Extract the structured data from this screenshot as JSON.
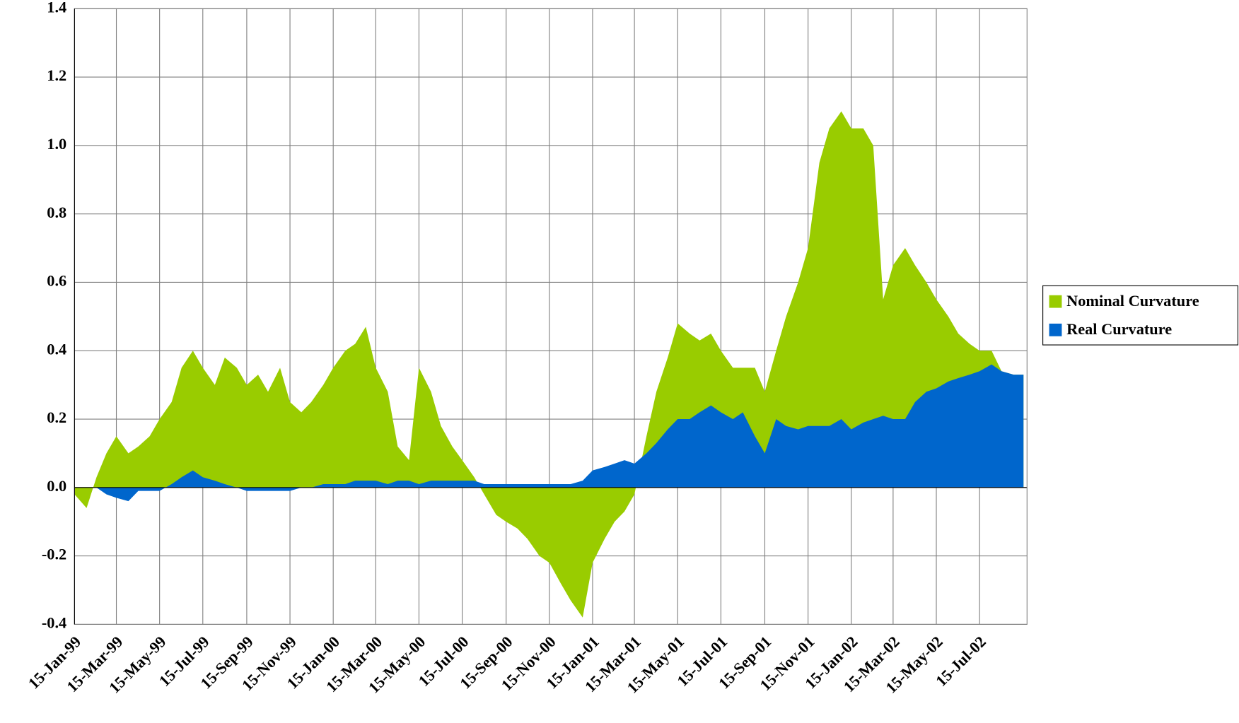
{
  "chart_data": {
    "type": "area",
    "x": [
      "1999-01-15",
      "1999-02-01",
      "1999-02-15",
      "1999-03-01",
      "1999-03-15",
      "1999-04-01",
      "1999-04-15",
      "1999-05-01",
      "1999-05-15",
      "1999-06-01",
      "1999-06-15",
      "1999-07-01",
      "1999-07-15",
      "1999-08-01",
      "1999-08-15",
      "1999-09-01",
      "1999-09-15",
      "1999-10-01",
      "1999-10-15",
      "1999-11-01",
      "1999-11-15",
      "1999-12-01",
      "1999-12-15",
      "2000-01-01",
      "2000-01-15",
      "2000-02-01",
      "2000-02-15",
      "2000-03-01",
      "2000-03-15",
      "2000-04-01",
      "2000-04-15",
      "2000-05-01",
      "2000-05-15",
      "2000-06-01",
      "2000-06-15",
      "2000-07-01",
      "2000-07-15",
      "2000-08-01",
      "2000-08-15",
      "2000-09-01",
      "2000-09-15",
      "2000-10-01",
      "2000-10-15",
      "2000-11-01",
      "2000-11-15",
      "2000-12-01",
      "2000-12-15",
      "2001-01-01",
      "2001-01-15",
      "2001-02-01",
      "2001-02-15",
      "2001-03-01",
      "2001-03-15",
      "2001-04-01",
      "2001-04-15",
      "2001-05-01",
      "2001-05-15",
      "2001-06-01",
      "2001-06-15",
      "2001-07-01",
      "2001-07-15",
      "2001-08-01",
      "2001-08-15",
      "2001-09-01",
      "2001-09-15",
      "2001-10-01",
      "2001-10-15",
      "2001-11-01",
      "2001-11-15",
      "2001-12-01",
      "2001-12-15",
      "2002-01-01",
      "2002-01-15",
      "2002-02-01",
      "2002-02-15",
      "2002-03-01",
      "2002-03-15",
      "2002-04-01",
      "2002-04-15",
      "2002-05-01",
      "2002-05-15",
      "2002-06-01",
      "2002-06-15",
      "2002-07-01",
      "2002-07-15",
      "2002-08-01",
      "2002-08-15",
      "2002-09-01",
      "2002-09-15"
    ],
    "series": [
      {
        "name": "Nominal Curvature",
        "color": "#99cc00",
        "values": [
          -0.02,
          -0.06,
          0.03,
          0.1,
          0.15,
          0.1,
          0.12,
          0.15,
          0.2,
          0.25,
          0.35,
          0.4,
          0.35,
          0.3,
          0.38,
          0.35,
          0.3,
          0.33,
          0.28,
          0.35,
          0.25,
          0.22,
          0.25,
          0.3,
          0.35,
          0.4,
          0.42,
          0.47,
          0.35,
          0.28,
          0.12,
          0.08,
          0.35,
          0.28,
          0.18,
          0.12,
          0.08,
          0.03,
          -0.02,
          -0.08,
          -0.1,
          -0.12,
          -0.15,
          -0.2,
          -0.22,
          -0.28,
          -0.33,
          -0.38,
          -0.22,
          -0.15,
          -0.1,
          -0.07,
          -0.02,
          0.15,
          0.28,
          0.38,
          0.48,
          0.45,
          0.43,
          0.45,
          0.4,
          0.35,
          0.35,
          0.35,
          0.28,
          0.4,
          0.5,
          0.6,
          0.7,
          0.95,
          1.05,
          1.1,
          1.05,
          1.05,
          1.0,
          0.55,
          0.65,
          0.7,
          0.65,
          0.6,
          0.55,
          0.5,
          0.45,
          0.42,
          0.4,
          0.4,
          0.34,
          0.33,
          0.33
        ]
      },
      {
        "name": "Real Curvature",
        "color": "#0066cc",
        "values": [
          0,
          0,
          0,
          -0.02,
          -0.03,
          -0.04,
          -0.01,
          -0.01,
          -0.01,
          0.01,
          0.03,
          0.05,
          0.03,
          0.02,
          0.01,
          0,
          -0.01,
          -0.01,
          -0.01,
          -0.01,
          -0.01,
          0,
          0,
          0.01,
          0.01,
          0.01,
          0.02,
          0.02,
          0.02,
          0.01,
          0.02,
          0.02,
          0.01,
          0.02,
          0.02,
          0.02,
          0.02,
          0.02,
          0.01,
          0.01,
          0.01,
          0.01,
          0.01,
          0.01,
          0.01,
          0.01,
          0.01,
          0.02,
          0.05,
          0.06,
          0.07,
          0.08,
          0.07,
          0.1,
          0.13,
          0.17,
          0.2,
          0.2,
          0.22,
          0.24,
          0.22,
          0.2,
          0.22,
          0.15,
          0.1,
          0.2,
          0.18,
          0.17,
          0.18,
          0.18,
          0.18,
          0.2,
          0.17,
          0.19,
          0.2,
          0.21,
          0.2,
          0.2,
          0.25,
          0.28,
          0.29,
          0.31,
          0.32,
          0.33,
          0.34,
          0.36,
          0.34,
          0.33,
          0.33
        ]
      }
    ],
    "xlim": [
      "1999-01-15",
      "2002-09-20"
    ],
    "xticks": [
      {
        "value": "1999-01-15",
        "label": "15-Jan-99"
      },
      {
        "value": "1999-03-15",
        "label": "15-Mar-99"
      },
      {
        "value": "1999-05-15",
        "label": "15-May-99"
      },
      {
        "value": "1999-07-15",
        "label": "15-Jul-99"
      },
      {
        "value": "1999-09-15",
        "label": "15-Sep-99"
      },
      {
        "value": "1999-11-15",
        "label": "15-Nov-99"
      },
      {
        "value": "2000-01-15",
        "label": "15-Jan-00"
      },
      {
        "value": "2000-03-15",
        "label": "15-Mar-00"
      },
      {
        "value": "2000-05-15",
        "label": "15-May-00"
      },
      {
        "value": "2000-07-15",
        "label": "15-Jul-00"
      },
      {
        "value": "2000-09-15",
        "label": "15-Sep-00"
      },
      {
        "value": "2000-11-15",
        "label": "15-Nov-00"
      },
      {
        "value": "2001-01-15",
        "label": "15-Jan-01"
      },
      {
        "value": "2001-03-15",
        "label": "15-Mar-01"
      },
      {
        "value": "2001-05-15",
        "label": "15-May-01"
      },
      {
        "value": "2001-07-15",
        "label": "15-Jul-01"
      },
      {
        "value": "2001-09-15",
        "label": "15-Sep-01"
      },
      {
        "value": "2001-11-15",
        "label": "15-Nov-01"
      },
      {
        "value": "2002-01-15",
        "label": "15-Jan-02"
      },
      {
        "value": "2002-03-15",
        "label": "15-Mar-02"
      },
      {
        "value": "2002-05-15",
        "label": "15-May-02"
      },
      {
        "value": "2002-07-15",
        "label": "15-Jul-02"
      }
    ],
    "ylim": [
      -0.4,
      1.4
    ],
    "yticks": [
      -0.4,
      -0.2,
      {
        "value": 0,
        "label": "0.0"
      },
      0.2,
      0.4,
      0.6,
      0.8,
      {
        "value": 1,
        "label": "1.0"
      },
      1.2,
      1.4
    ],
    "grid": true,
    "legend": "right"
  }
}
